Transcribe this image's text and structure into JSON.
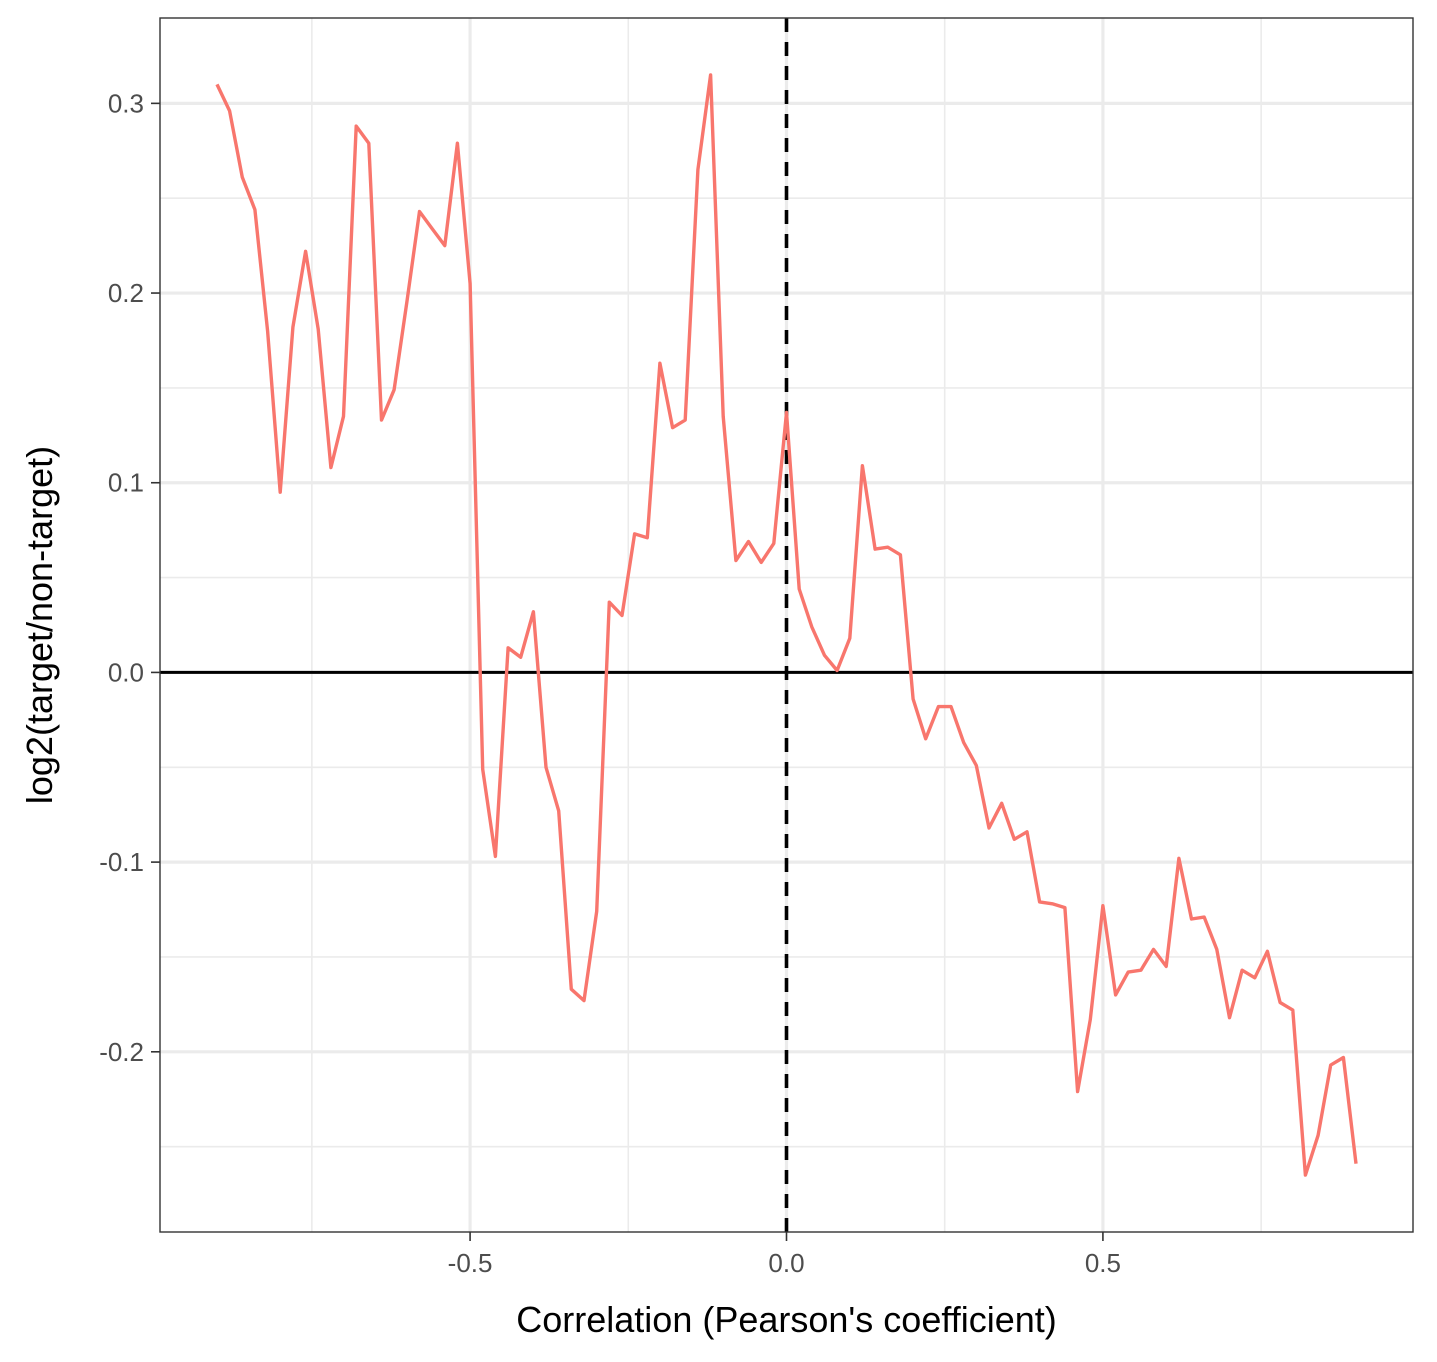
{
  "chart_data": {
    "type": "line",
    "title": "",
    "xlabel": "Correlation (Pearson's coefficient)",
    "ylabel": "log2(target/non-target)",
    "xlim": [
      -0.99,
      0.99
    ],
    "ylim": [
      -0.295,
      0.345
    ],
    "x_ticks": [
      -0.5,
      0.0,
      0.5
    ],
    "x_tick_labels": [
      "-0.5",
      "0.0",
      "0.5"
    ],
    "y_ticks": [
      -0.2,
      -0.1,
      0.0,
      0.1,
      0.2,
      0.3
    ],
    "y_tick_labels": [
      "-0.2",
      "-0.1",
      "0.0",
      "0.1",
      "0.2",
      "0.3"
    ],
    "x_minor_ticks": [
      -0.75,
      -0.25,
      0.25,
      0.75
    ],
    "y_minor_ticks": [
      -0.25,
      -0.15,
      -0.05,
      0.05,
      0.15,
      0.25
    ],
    "grid": true,
    "hline": {
      "y": 0.0,
      "style": "solid",
      "color": "#000000"
    },
    "vline": {
      "x": 0.0,
      "style": "dashed",
      "color": "#000000"
    },
    "series": [
      {
        "color": "#F8766D",
        "points": [
          [
            -0.9,
            0.31
          ],
          [
            -0.88,
            0.296
          ],
          [
            -0.86,
            0.261
          ],
          [
            -0.84,
            0.244
          ],
          [
            -0.82,
            0.18
          ],
          [
            -0.8,
            0.095
          ],
          [
            -0.78,
            0.182
          ],
          [
            -0.76,
            0.222
          ],
          [
            -0.74,
            0.181
          ],
          [
            -0.72,
            0.108
          ],
          [
            -0.7,
            0.135
          ],
          [
            -0.68,
            0.288
          ],
          [
            -0.66,
            0.279
          ],
          [
            -0.64,
            0.133
          ],
          [
            -0.62,
            0.149
          ],
          [
            -0.6,
            0.195
          ],
          [
            -0.58,
            0.243
          ],
          [
            -0.56,
            0.234
          ],
          [
            -0.54,
            0.225
          ],
          [
            -0.52,
            0.279
          ],
          [
            -0.5,
            0.205
          ],
          [
            -0.48,
            -0.051
          ],
          [
            -0.46,
            -0.097
          ],
          [
            -0.44,
            0.013
          ],
          [
            -0.42,
            0.008
          ],
          [
            -0.4,
            0.032
          ],
          [
            -0.38,
            -0.05
          ],
          [
            -0.36,
            -0.073
          ],
          [
            -0.34,
            -0.167
          ],
          [
            -0.32,
            -0.173
          ],
          [
            -0.3,
            -0.126
          ],
          [
            -0.28,
            0.037
          ],
          [
            -0.26,
            0.03
          ],
          [
            -0.24,
            0.073
          ],
          [
            -0.22,
            0.071
          ],
          [
            -0.2,
            0.163
          ],
          [
            -0.18,
            0.129
          ],
          [
            -0.16,
            0.133
          ],
          [
            -0.14,
            0.265
          ],
          [
            -0.12,
            0.315
          ],
          [
            -0.1,
            0.135
          ],
          [
            -0.08,
            0.059
          ],
          [
            -0.06,
            0.069
          ],
          [
            -0.04,
            0.058
          ],
          [
            -0.02,
            0.068
          ],
          [
            0.0,
            0.137
          ],
          [
            0.02,
            0.044
          ],
          [
            0.04,
            0.024
          ],
          [
            0.06,
            0.009
          ],
          [
            0.08,
            0.001
          ],
          [
            0.1,
            0.018
          ],
          [
            0.12,
            0.109
          ],
          [
            0.14,
            0.065
          ],
          [
            0.16,
            0.066
          ],
          [
            0.18,
            0.062
          ],
          [
            0.2,
            -0.014
          ],
          [
            0.22,
            -0.035
          ],
          [
            0.24,
            -0.018
          ],
          [
            0.26,
            -0.018
          ],
          [
            0.28,
            -0.037
          ],
          [
            0.3,
            -0.049
          ],
          [
            0.32,
            -0.082
          ],
          [
            0.34,
            -0.069
          ],
          [
            0.36,
            -0.088
          ],
          [
            0.38,
            -0.084
          ],
          [
            0.4,
            -0.121
          ],
          [
            0.42,
            -0.122
          ],
          [
            0.44,
            -0.124
          ],
          [
            0.46,
            -0.221
          ],
          [
            0.48,
            -0.183
          ],
          [
            0.5,
            -0.123
          ],
          [
            0.52,
            -0.17
          ],
          [
            0.54,
            -0.158
          ],
          [
            0.56,
            -0.157
          ],
          [
            0.58,
            -0.146
          ],
          [
            0.6,
            -0.155
          ],
          [
            0.62,
            -0.098
          ],
          [
            0.64,
            -0.13
          ],
          [
            0.66,
            -0.129
          ],
          [
            0.68,
            -0.146
          ],
          [
            0.7,
            -0.182
          ],
          [
            0.72,
            -0.157
          ],
          [
            0.74,
            -0.161
          ],
          [
            0.76,
            -0.147
          ],
          [
            0.78,
            -0.174
          ],
          [
            0.8,
            -0.178
          ],
          [
            0.82,
            -0.265
          ],
          [
            0.84,
            -0.244
          ],
          [
            0.86,
            -0.207
          ],
          [
            0.88,
            -0.203
          ],
          [
            0.9,
            -0.259
          ]
        ]
      }
    ]
  }
}
